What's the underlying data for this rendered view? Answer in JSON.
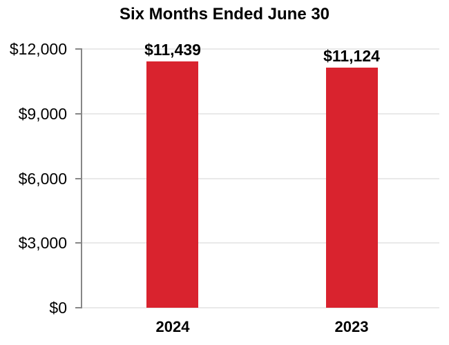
{
  "chart_data": {
    "type": "bar",
    "title": "Six Months Ended June 30",
    "categories": [
      "2024",
      "2023"
    ],
    "values": [
      11439,
      11124
    ],
    "bar_labels": [
      "$11,439",
      "$11,124"
    ],
    "xlabel": "",
    "ylabel": "",
    "ylim": [
      0,
      12000
    ],
    "yticks": [
      {
        "value": 0,
        "label": "$0"
      },
      {
        "value": 3000,
        "label": "$3,000"
      },
      {
        "value": 6000,
        "label": "$6,000"
      },
      {
        "value": 9000,
        "label": "$9,000"
      },
      {
        "value": 12000,
        "label": "$12,000"
      }
    ],
    "grid": true,
    "legend": false,
    "colors": {
      "bar": "#d9232e",
      "axis": "#868686",
      "gridline": "#e9e9e9",
      "text": "#000000",
      "background": "#ffffff"
    }
  }
}
